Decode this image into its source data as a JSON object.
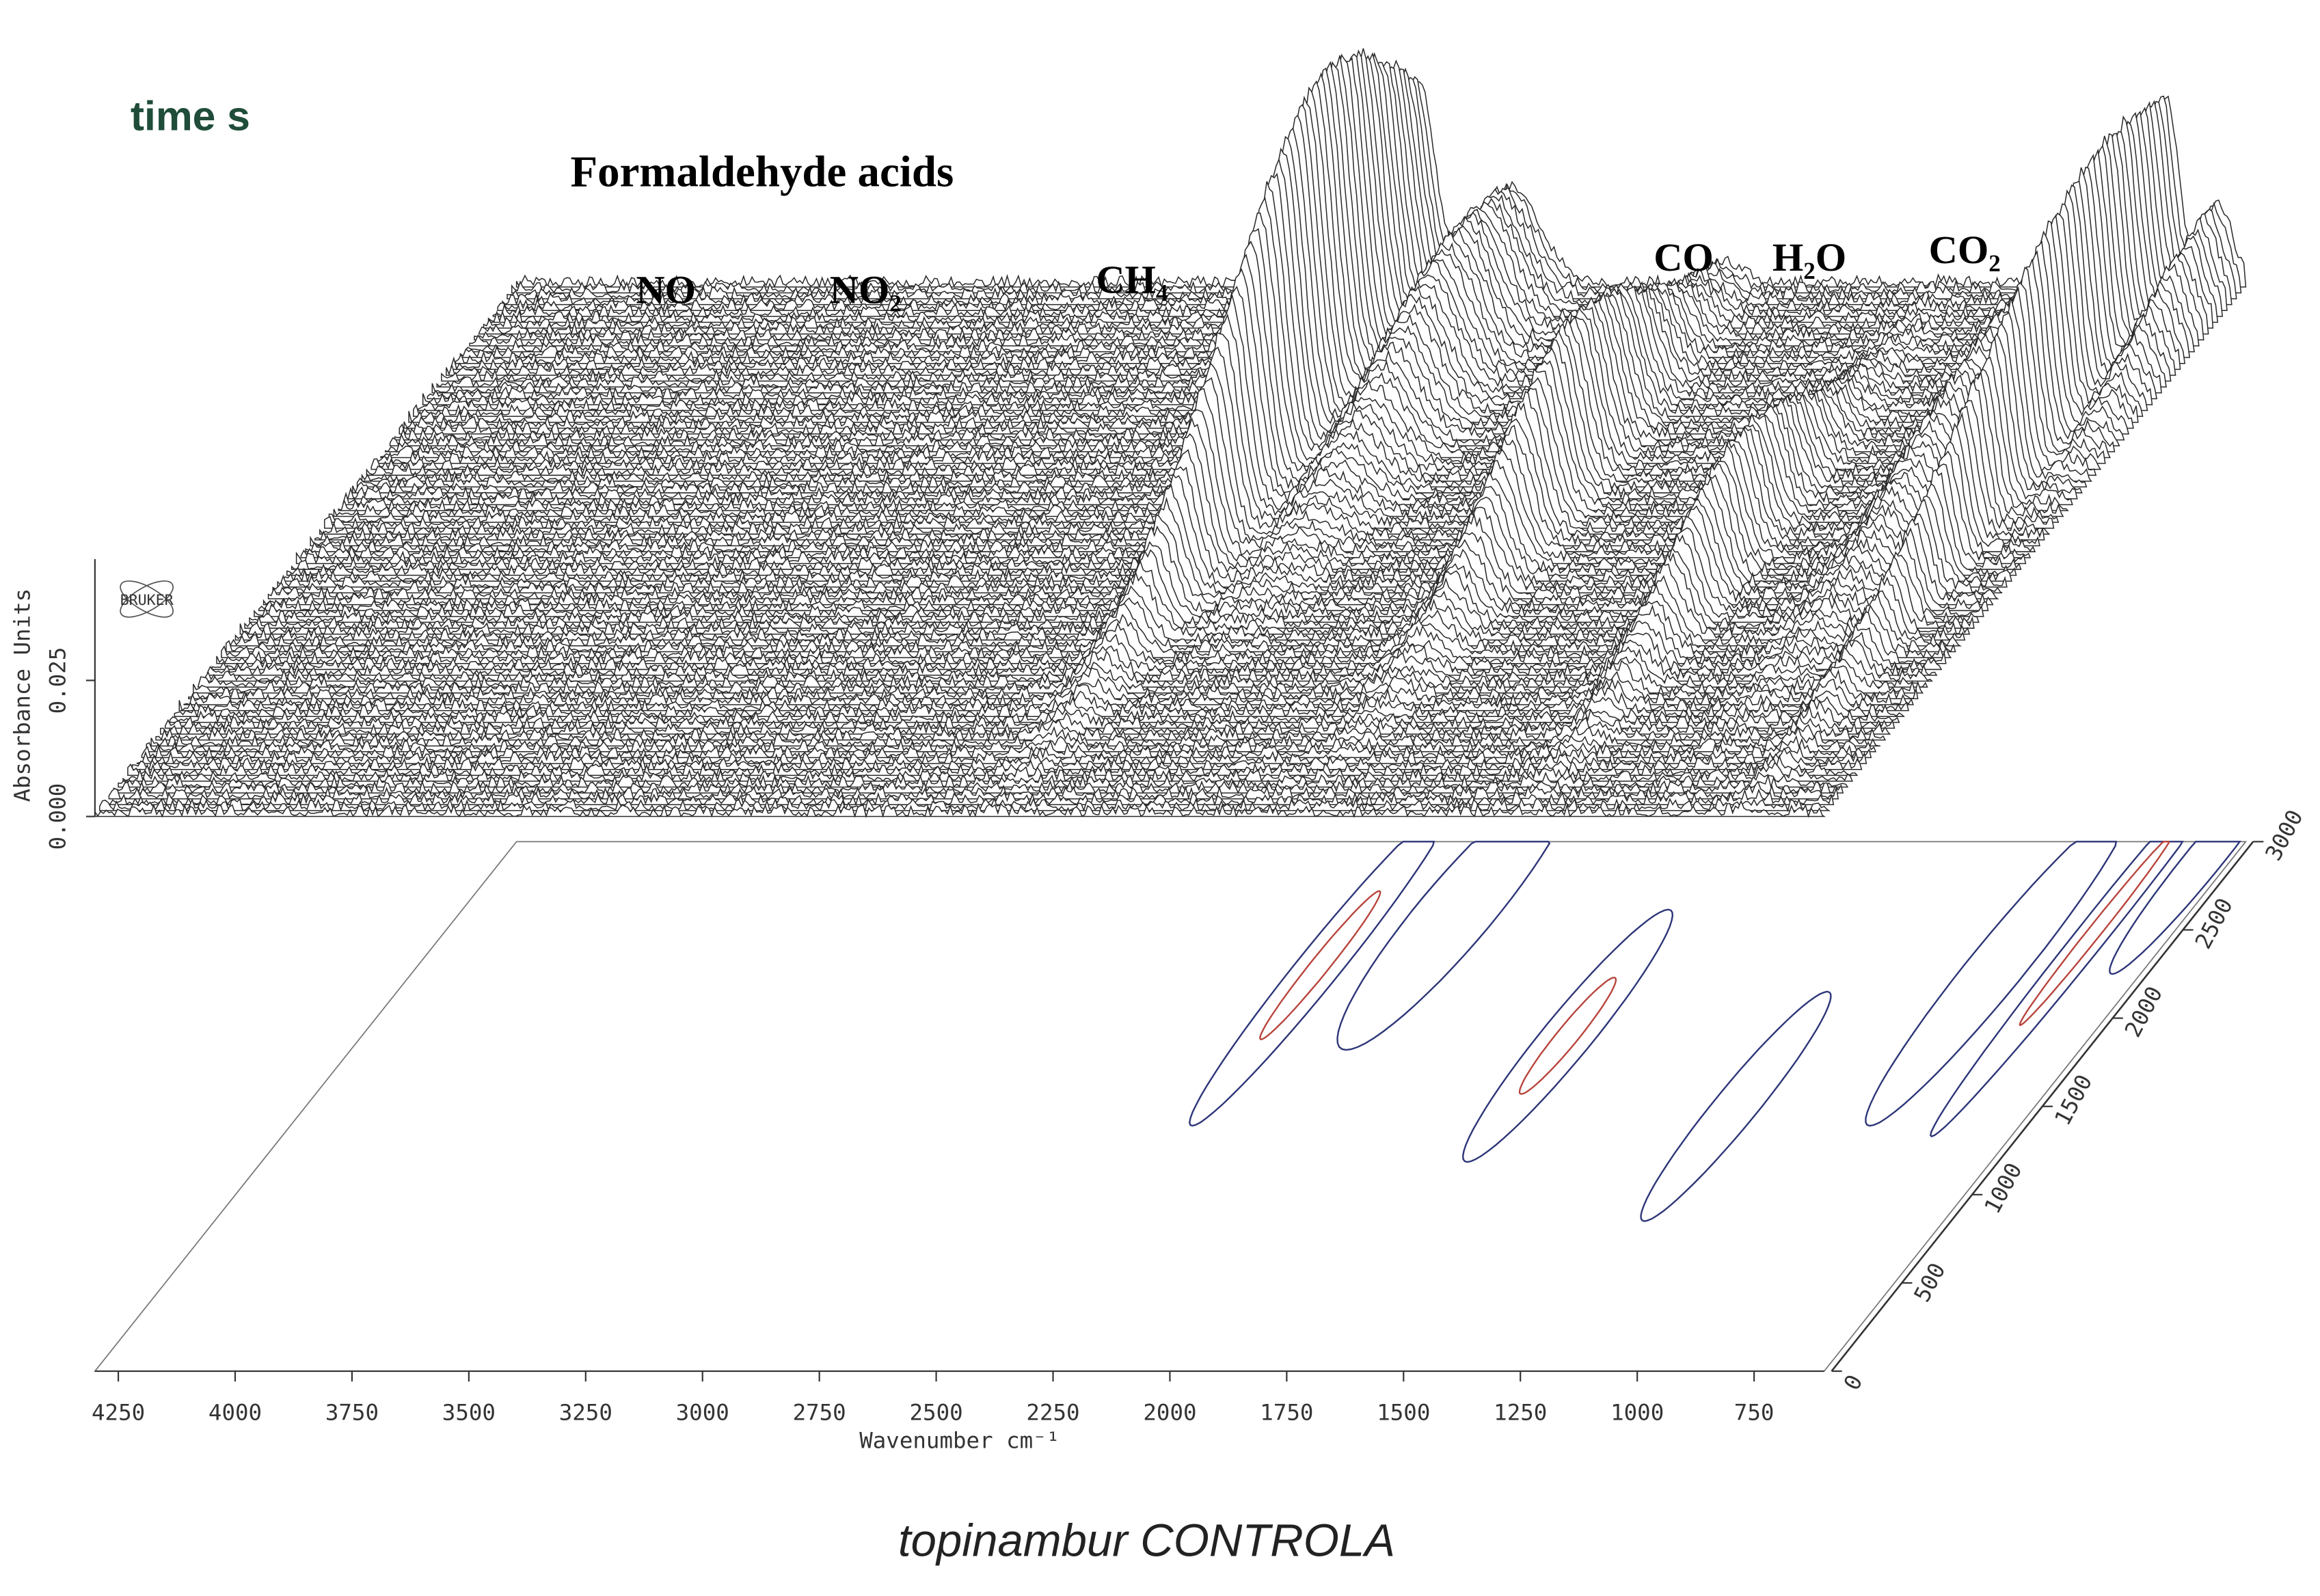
{
  "chart_data": {
    "type": "waterfall3d",
    "title": "topinambur CONTROLA",
    "xlabel": "Wavenumber cm⁻¹",
    "ylabel": "Absorbance Units",
    "zlabel": "time s",
    "logo": "BRUKER",
    "annotations": [
      "Formaldehyde acids",
      "NO",
      "NO₂",
      "CH₄",
      "CO",
      "H₂O",
      "CO₂"
    ],
    "xlim": [
      4300,
      600
    ],
    "xticks": [
      4250,
      4000,
      3750,
      3500,
      3250,
      3000,
      2750,
      2500,
      2250,
      2000,
      1750,
      1500,
      1250,
      1000,
      750
    ],
    "ylim": [
      0,
      0.05
    ],
    "yticks": [
      {
        "value": 0,
        "label": "0.000"
      },
      {
        "value": 0.025,
        "label": "0.025"
      }
    ],
    "zlim": [
      0,
      3000
    ],
    "zticks": [
      0,
      500,
      1000,
      1500,
      2000,
      2500,
      3000
    ],
    "peaks": [
      {
        "x": 2370,
        "height": 0.06,
        "width": 35,
        "time": 2300,
        "time_width": 700
      },
      {
        "x": 2170,
        "height": 0.022,
        "width": 60,
        "time": 2600,
        "time_width": 600
      },
      {
        "x": 1720,
        "height": 0.028,
        "width": 40,
        "time": 1900,
        "time_width": 550
      },
      {
        "x": 1240,
        "height": 0.02,
        "width": 35,
        "time": 1500,
        "time_width": 500
      },
      {
        "x": 920,
        "height": 0.016,
        "width": 45,
        "time": 2300,
        "time_width": 700
      },
      {
        "x": 770,
        "height": 0.04,
        "width": 25,
        "time": 2500,
        "time_width": 900
      },
      {
        "x": 660,
        "height": 0.015,
        "width": 30,
        "time": 2900,
        "time_width": 500
      }
    ],
    "noise": 0.003,
    "line_color": "#2a2a2a",
    "contour_colors": [
      "#2c3578",
      "#b8443c"
    ]
  }
}
